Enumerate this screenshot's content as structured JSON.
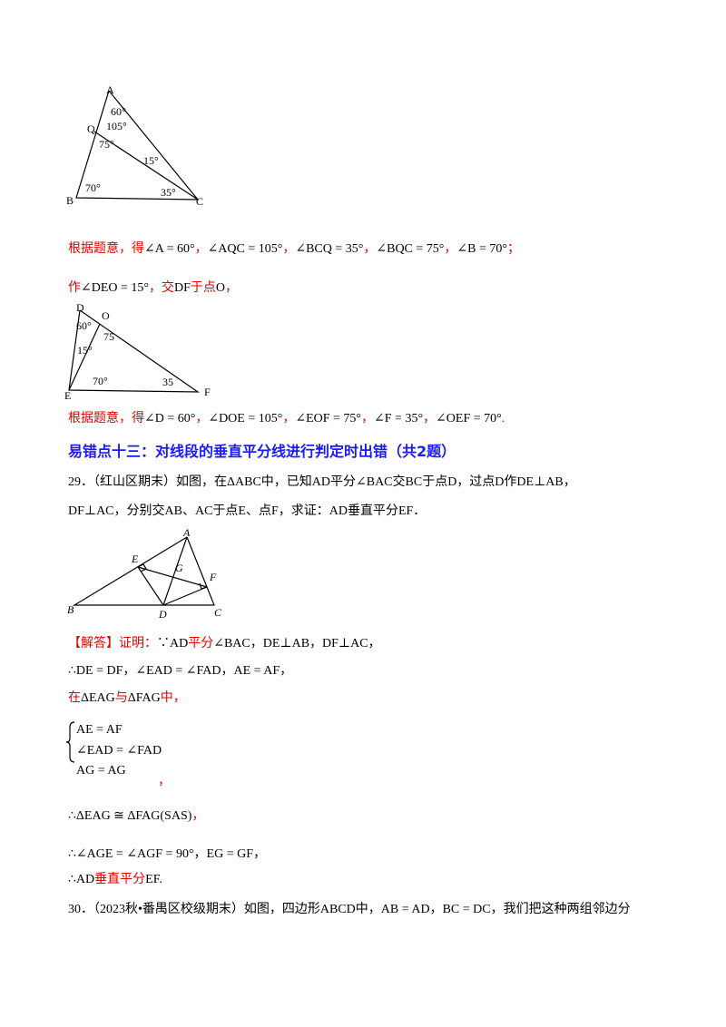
{
  "figure_1": {
    "labels": [
      "A",
      "Q",
      "B",
      "C",
      "60°",
      "105°",
      "75°",
      "15°",
      "70°",
      "35°"
    ]
  },
  "figure_2": {
    "labels": [
      "D",
      "O",
      "60°",
      "75",
      "15°",
      "70°",
      "35",
      "E",
      "F"
    ]
  },
  "figure_3": {
    "labels": [
      "A",
      "E",
      "G",
      "F",
      "B",
      "D",
      "C"
    ]
  },
  "lines": [
    {
      "segments": [
        {
          "text": "根据题意，得",
          "color": "#e60000"
        },
        {
          "text": "∠A = 60°",
          "color": "#000000"
        },
        {
          "text": "，",
          "color": "#e60000"
        },
        {
          "text": "∠AQC = 105°",
          "color": "#000000"
        },
        {
          "text": "，",
          "color": "#e60000"
        },
        {
          "text": "∠BCQ = 35°",
          "color": "#000000"
        },
        {
          "text": "，",
          "color": "#e60000"
        },
        {
          "text": "∠BQC = 75°",
          "color": "#000000"
        },
        {
          "text": "，",
          "color": "#e60000"
        },
        {
          "text": "∠B = 70°",
          "color": "#000000"
        },
        {
          "text": "；",
          "color": "#e60000"
        }
      ]
    },
    {
      "segments": [
        {
          "text": "作",
          "color": "#e60000"
        },
        {
          "text": "∠DEO = 15°",
          "color": "#000000"
        },
        {
          "text": "，交",
          "color": "#e60000"
        },
        {
          "text": "DF",
          "color": "#000000"
        },
        {
          "text": "于点",
          "color": "#e60000"
        },
        {
          "text": "O",
          "color": "#000000"
        },
        {
          "text": "，",
          "color": "#e60000"
        }
      ]
    },
    {
      "segments": [
        {
          "text": "根据题意，得",
          "color": "#e60000"
        },
        {
          "text": "∠D = 60°",
          "color": "#000000"
        },
        {
          "text": "，",
          "color": "#e60000"
        },
        {
          "text": "∠DOE = 105°",
          "color": "#000000"
        },
        {
          "text": "，",
          "color": "#e60000"
        },
        {
          "text": "∠EOF = 75°",
          "color": "#000000"
        },
        {
          "text": "，",
          "color": "#e60000"
        },
        {
          "text": "∠F = 35°",
          "color": "#000000"
        },
        {
          "text": "，",
          "color": "#e60000"
        },
        {
          "text": "∠OEF = 70°",
          "color": "#000000"
        },
        {
          "text": ".",
          "color": "#e60000"
        }
      ]
    },
    {
      "segments": [
        {
          "text": "易错点十三：对线段的垂直平分线进行判定时出错（共2题）",
          "color": "#1a1aff"
        }
      ]
    },
    {
      "segments": [
        {
          "text": "29．（红山区期末）如图，在ΔABC中，已知AD平分∠BAC交BC于点D，过点D作DE⊥AB，",
          "color": "#000000"
        }
      ]
    },
    {
      "segments": [
        {
          "text": "DF⊥AC，分别交AB、AC于点E、点F，求证：AD垂直平分EF．",
          "color": "#000000"
        }
      ]
    },
    {
      "segments": [
        {
          "text": "【解答】证明：",
          "color": "#e60000"
        },
        {
          "text": "∵AD",
          "color": "#000000"
        },
        {
          "text": "平分",
          "color": "#e60000"
        },
        {
          "text": "∠BAC，DE⊥AB，DF⊥AC，",
          "color": "#000000"
        }
      ]
    },
    {
      "segments": [
        {
          "text": "∴DE = DF，∠EAD = ∠FAD，AE = AF，",
          "color": "#000000"
        }
      ]
    },
    {
      "segments": [
        {
          "text": "在",
          "color": "#e60000"
        },
        {
          "text": "ΔEAG",
          "color": "#000000"
        },
        {
          "text": "与",
          "color": "#e60000"
        },
        {
          "text": "ΔFAG",
          "color": "#000000"
        },
        {
          "text": "中，",
          "color": "#e60000"
        }
      ]
    },
    {
      "segments": [
        {
          "text": "AE = AF",
          "color": "#000000"
        }
      ]
    },
    {
      "segments": [
        {
          "text": "∠EAD = ∠FAD",
          "color": "#000000"
        }
      ]
    },
    {
      "segments": [
        {
          "text": "AG = AG",
          "color": "#000000"
        }
      ]
    },
    {
      "segments": [
        {
          "text": "，",
          "color": "#e60000"
        }
      ]
    },
    {
      "segments": [
        {
          "text": "∴ΔEAG ≅ ΔFAG(SAS)",
          "color": "#000000"
        },
        {
          "text": "，",
          "color": "#e60000"
        }
      ]
    },
    {
      "segments": [
        {
          "text": "∴∠AGE = ∠AGF = 90°，EG = GF，",
          "color": "#000000"
        }
      ]
    },
    {
      "segments": [
        {
          "text": "∴AD",
          "color": "#000000"
        },
        {
          "text": "垂直平分",
          "color": "#e60000"
        },
        {
          "text": "EF",
          "color": "#000000"
        },
        {
          "text": ".",
          "color": "#000000"
        }
      ]
    },
    {
      "segments": [
        {
          "text": "30．（2023秋•番禺区校级期末）如图，四边形ABCD中，AB = AD，BC = DC，我们把这种两组邻边分",
          "color": "#000000"
        }
      ]
    }
  ]
}
